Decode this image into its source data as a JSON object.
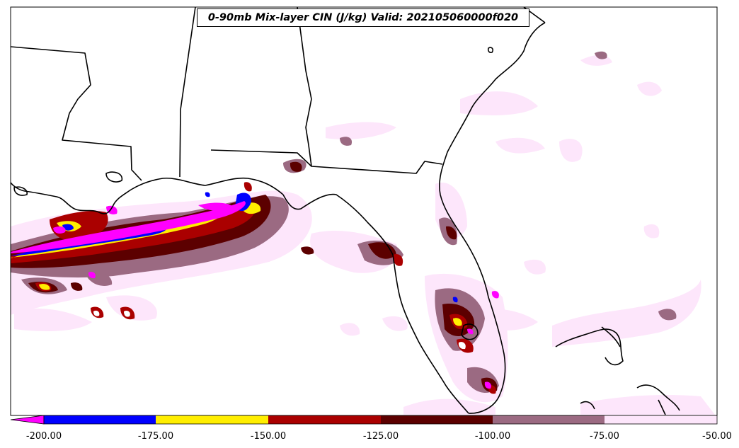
{
  "title": "0-90mb Mix-layer CIN (J/kg) Valid: 202105060000f020",
  "colorbar": {
    "levels": [
      {
        "value": "-200.00",
        "color": "#ff00ff"
      },
      {
        "value": "-175.00",
        "color": "#0000ff"
      },
      {
        "value": "-150.00",
        "color": "#ffee00"
      },
      {
        "value": "-125.00",
        "color": "#aa0000"
      },
      {
        "value": "-100.00",
        "color": "#5c0000"
      },
      {
        "value": "-75.00",
        "color": "#9b6a82"
      },
      {
        "value": "-50.00",
        "color": "#fde6fb"
      }
    ],
    "tick_labels": [
      "-200.00",
      "-175.00",
      "-150.00",
      "-125.00",
      "-100.00",
      "-75.00",
      "-50.00"
    ]
  },
  "colors": {
    "magenta": "#ff00ff",
    "blue": "#0000ff",
    "yellow": "#ffee00",
    "red": "#aa0000",
    "darkred": "#5c0000",
    "mauve": "#9b6a82",
    "pink": "#fde6fb"
  }
}
